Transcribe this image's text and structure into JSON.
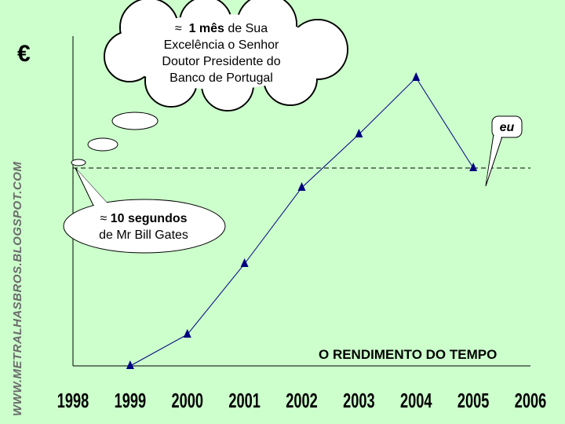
{
  "watermark": "WWW.METRALHASBROS.BLOGSPOT.COM",
  "y_unit": "€",
  "bubbles": {
    "governor": {
      "approx": "≈",
      "bold": "1 mês",
      "rest1": " de Sua",
      "line2": "Excelência o Senhor",
      "line3": "Doutor Presidente do",
      "line4": "Banco de Portugal"
    },
    "gates": {
      "approx": "≈",
      "bold": "10 segundos",
      "line2": "de Mr Bill Gates"
    },
    "me": {
      "text": "eu"
    }
  },
  "chart_data": {
    "type": "line",
    "title": "O RENDIMENTO DO TEMPO",
    "xlabel": "",
    "ylabel": "€",
    "categories": [
      "1998",
      "1999",
      "2000",
      "2001",
      "2002",
      "2003",
      "2004",
      "2005",
      "2006"
    ],
    "series": [
      {
        "x": [
          1999,
          2000,
          2001,
          2002,
          2003,
          2004,
          2005
        ],
        "values": [
          0,
          40,
          130,
          227,
          295,
          367,
          252
        ]
      }
    ],
    "reference_line": {
      "x_start": 1998,
      "x_end": 2006,
      "y": 252,
      "style": "dashed"
    },
    "xlim": [
      1998,
      2006
    ],
    "ylim": [
      0,
      400
    ],
    "grid": false,
    "colors": {
      "line": "#000080",
      "background": "#ccffcc"
    }
  }
}
